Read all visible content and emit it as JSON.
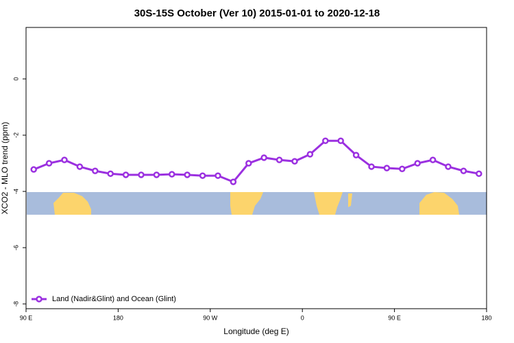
{
  "chart_data": {
    "type": "line",
    "title": "30S-15S October (Ver 10)   2015-01-01 to 2020-12-18",
    "x_label": "Longitude (deg E)",
    "y_label": "XCO2 - MLO trend (ppm)",
    "x": [
      97.5,
      112.5,
      127.5,
      142.5,
      157.5,
      172.5,
      187.5,
      202.5,
      217.5,
      232.5,
      247.5,
      262.5,
      277.5,
      292.5,
      307.5,
      322.5,
      337.5,
      352.5,
      367.5,
      382.5,
      397.5,
      412.5,
      427.5,
      442.5,
      457.5,
      472.5,
      487.5,
      502.5,
      517.5,
      532.5
    ],
    "series": [
      {
        "name": "Land (Nadir&Glint) and Ocean (Glint)",
        "color": "#9b30e0",
        "values": [
          -3.22,
          -3.0,
          -2.88,
          -3.12,
          -3.27,
          -3.37,
          -3.41,
          -3.41,
          -3.41,
          -3.39,
          -3.41,
          -3.44,
          -3.44,
          -3.66,
          -3.0,
          -2.8,
          -2.88,
          -2.93,
          -2.68,
          -2.2,
          -2.2,
          -2.71,
          -3.12,
          -3.17,
          -3.2,
          -3.0,
          -2.88,
          -3.12,
          -3.27,
          -3.37
        ]
      }
    ],
    "xlim": [
      90,
      540
    ],
    "xticks": [
      {
        "value": 90,
        "label": "90 E"
      },
      {
        "value": 180,
        "label": "180"
      },
      {
        "value": 270,
        "label": "90 W"
      },
      {
        "value": 360,
        "label": "0"
      },
      {
        "value": 450,
        "label": "90 E"
      },
      {
        "value": 540,
        "label": "180"
      }
    ],
    "ylim": [
      -8.17,
      1.83
    ],
    "yticks": [
      0,
      -2,
      -4,
      -6,
      -8
    ],
    "legend": "bottom-left"
  }
}
